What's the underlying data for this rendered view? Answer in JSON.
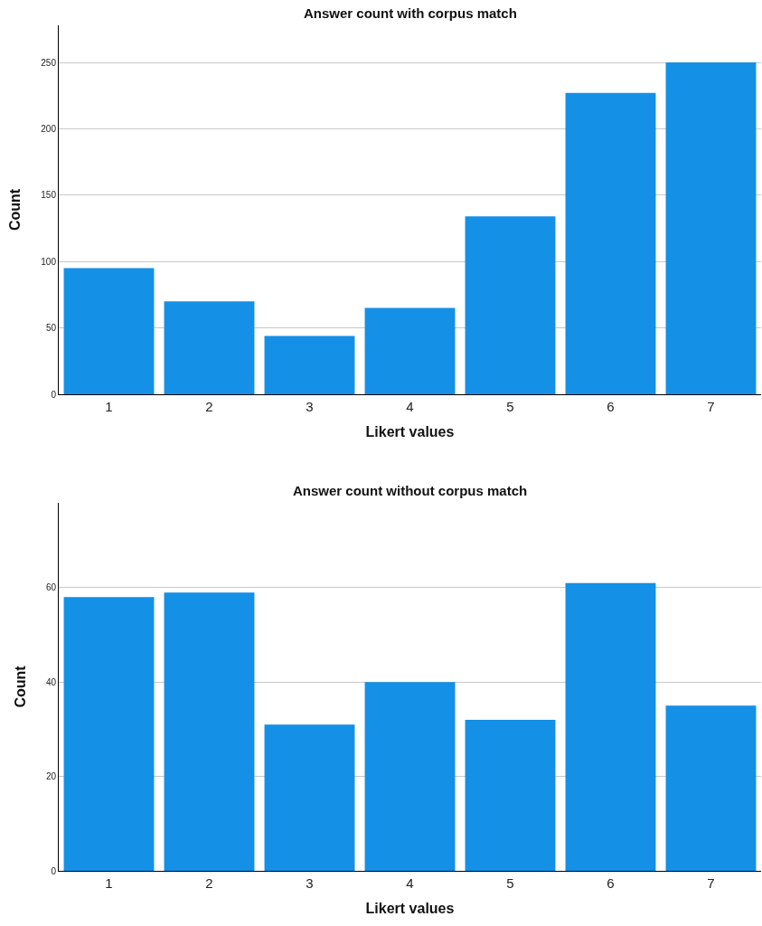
{
  "chart_data": [
    {
      "type": "bar",
      "title": "Answer count with corpus match",
      "xlabel": "Likert values",
      "ylabel": "Count",
      "categories": [
        "1",
        "2",
        "3",
        "4",
        "5",
        "6",
        "7"
      ],
      "values": [
        95,
        70,
        44,
        65,
        134,
        227,
        250
      ],
      "color": "#1490e6",
      "ylim": [
        0,
        278
      ],
      "yticks": [
        0,
        50,
        100,
        150,
        200,
        250
      ],
      "grid": "y"
    },
    {
      "type": "bar",
      "title": "Answer count without corpus match",
      "xlabel": "Likert values",
      "ylabel": "Count",
      "categories": [
        "1",
        "2",
        "3",
        "4",
        "5",
        "6",
        "7"
      ],
      "values": [
        58,
        59,
        31,
        40,
        32,
        61,
        35
      ],
      "color": "#1490e6",
      "ylim": [
        0,
        78
      ],
      "yticks": [
        0,
        20,
        40,
        60
      ],
      "grid": "y"
    }
  ]
}
